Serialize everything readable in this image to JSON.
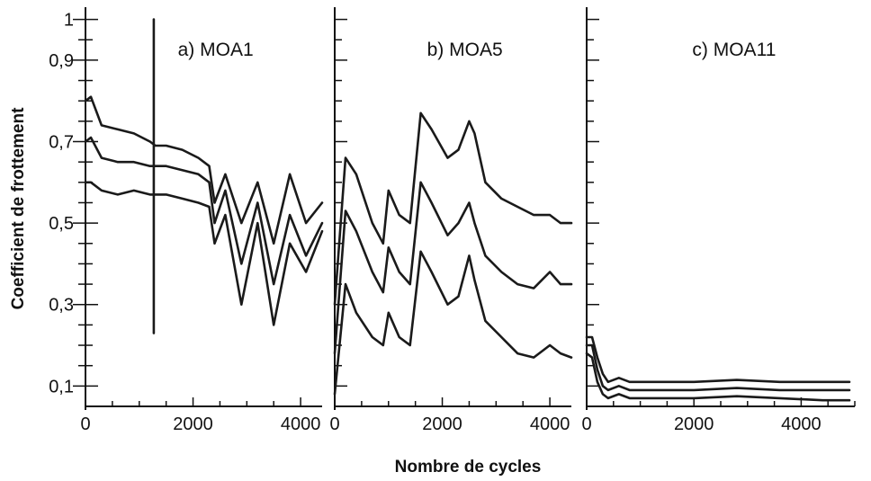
{
  "chart_data": {
    "type": "line",
    "ylabel": "Coefficient de frottement",
    "xlabel": "Nombre de cycles",
    "ylim": [
      0.05,
      1.03
    ],
    "yticks": [
      0.1,
      0.3,
      0.5,
      0.7,
      0.9,
      1
    ],
    "ytick_labels": [
      "0,1",
      "0,3",
      "0,5",
      "0,7",
      "0,9",
      "1"
    ],
    "panels": [
      {
        "title": "a) MOA1",
        "xlim": [
          0,
          4400
        ],
        "xticks": [
          0,
          2000,
          4000
        ],
        "xtick_labels": [
          "0",
          "2000",
          "4000"
        ],
        "series": [
          {
            "x": [
              0,
              100,
              300,
              600,
              900,
              1200,
              1300,
              1500,
              1800,
              2100,
              2300,
              2400,
              2600,
              2900,
              3200,
              3500,
              3800,
              4100,
              4400
            ],
            "y": [
              0.8,
              0.81,
              0.74,
              0.73,
              0.72,
              0.7,
              0.69,
              0.69,
              0.68,
              0.66,
              0.64,
              0.55,
              0.62,
              0.5,
              0.6,
              0.45,
              0.62,
              0.5,
              0.55
            ]
          },
          {
            "x": [
              0,
              100,
              300,
              600,
              900,
              1200,
              1300,
              1500,
              1800,
              2100,
              2300,
              2400,
              2600,
              2900,
              3200,
              3500,
              3800,
              4100,
              4400
            ],
            "y": [
              0.7,
              0.71,
              0.66,
              0.65,
              0.65,
              0.64,
              0.64,
              0.64,
              0.63,
              0.62,
              0.6,
              0.5,
              0.58,
              0.4,
              0.55,
              0.35,
              0.52,
              0.42,
              0.5
            ]
          },
          {
            "x": [
              0,
              100,
              300,
              600,
              900,
              1200,
              1300,
              1500,
              1800,
              2100,
              2300,
              2400,
              2600,
              2900,
              3200,
              3500,
              3800,
              4100,
              4400
            ],
            "y": [
              0.6,
              0.6,
              0.58,
              0.57,
              0.58,
              0.57,
              0.57,
              0.57,
              0.56,
              0.55,
              0.54,
              0.45,
              0.52,
              0.3,
              0.5,
              0.25,
              0.45,
              0.38,
              0.48
            ]
          }
        ],
        "spike": {
          "x": 1270,
          "y_min": 0.23,
          "y_max": 1.0
        }
      },
      {
        "title": "b) MOA5",
        "xlim": [
          0,
          4400
        ],
        "xticks": [
          0,
          2000,
          4000
        ],
        "xtick_labels": [
          "0",
          "2000",
          "4000"
        ],
        "series": [
          {
            "x": [
              0,
              200,
              400,
              700,
              900,
              1000,
              1200,
              1400,
              1600,
              1800,
              2100,
              2300,
              2500,
              2600,
              2800,
              3100,
              3400,
              3700,
              4000,
              4200,
              4400
            ],
            "y": [
              0.3,
              0.66,
              0.62,
              0.5,
              0.45,
              0.58,
              0.52,
              0.5,
              0.77,
              0.73,
              0.66,
              0.68,
              0.75,
              0.72,
              0.6,
              0.56,
              0.54,
              0.52,
              0.52,
              0.5,
              0.5
            ]
          },
          {
            "x": [
              0,
              200,
              400,
              700,
              900,
              1000,
              1200,
              1400,
              1600,
              1800,
              2100,
              2300,
              2500,
              2600,
              2800,
              3100,
              3400,
              3700,
              4000,
              4200,
              4400
            ],
            "y": [
              0.18,
              0.53,
              0.48,
              0.38,
              0.33,
              0.44,
              0.38,
              0.35,
              0.6,
              0.55,
              0.47,
              0.5,
              0.55,
              0.5,
              0.42,
              0.38,
              0.35,
              0.34,
              0.38,
              0.35,
              0.35
            ]
          },
          {
            "x": [
              0,
              200,
              400,
              700,
              900,
              1000,
              1200,
              1400,
              1600,
              1800,
              2100,
              2300,
              2500,
              2600,
              2800,
              3100,
              3400,
              3700,
              4000,
              4200,
              4400
            ],
            "y": [
              0.08,
              0.35,
              0.28,
              0.22,
              0.2,
              0.28,
              0.22,
              0.2,
              0.43,
              0.38,
              0.3,
              0.32,
              0.42,
              0.36,
              0.26,
              0.22,
              0.18,
              0.17,
              0.2,
              0.18,
              0.17
            ]
          }
        ]
      },
      {
        "title": "c) MOA11",
        "xlim": [
          0,
          5000
        ],
        "xticks": [
          0,
          2000,
          4000
        ],
        "xtick_labels": [
          "0",
          "2000",
          "4000"
        ],
        "series": [
          {
            "x": [
              0,
              100,
              200,
              300,
              400,
              600,
              800,
              1200,
              2000,
              2800,
              3600,
              4400,
              4900
            ],
            "y": [
              0.22,
              0.22,
              0.17,
              0.13,
              0.11,
              0.12,
              0.11,
              0.11,
              0.11,
              0.115,
              0.11,
              0.11,
              0.11
            ]
          },
          {
            "x": [
              0,
              100,
              200,
              300,
              400,
              600,
              800,
              1200,
              2000,
              2800,
              3600,
              4400,
              4900
            ],
            "y": [
              0.2,
              0.2,
              0.14,
              0.1,
              0.09,
              0.1,
              0.09,
              0.09,
              0.09,
              0.095,
              0.09,
              0.09,
              0.09
            ]
          },
          {
            "x": [
              0,
              100,
              200,
              300,
              400,
              600,
              800,
              1200,
              2000,
              2800,
              3600,
              4400,
              4900
            ],
            "y": [
              0.18,
              0.17,
              0.11,
              0.08,
              0.07,
              0.08,
              0.07,
              0.07,
              0.07,
              0.075,
              0.07,
              0.065,
              0.065
            ]
          }
        ]
      }
    ]
  }
}
